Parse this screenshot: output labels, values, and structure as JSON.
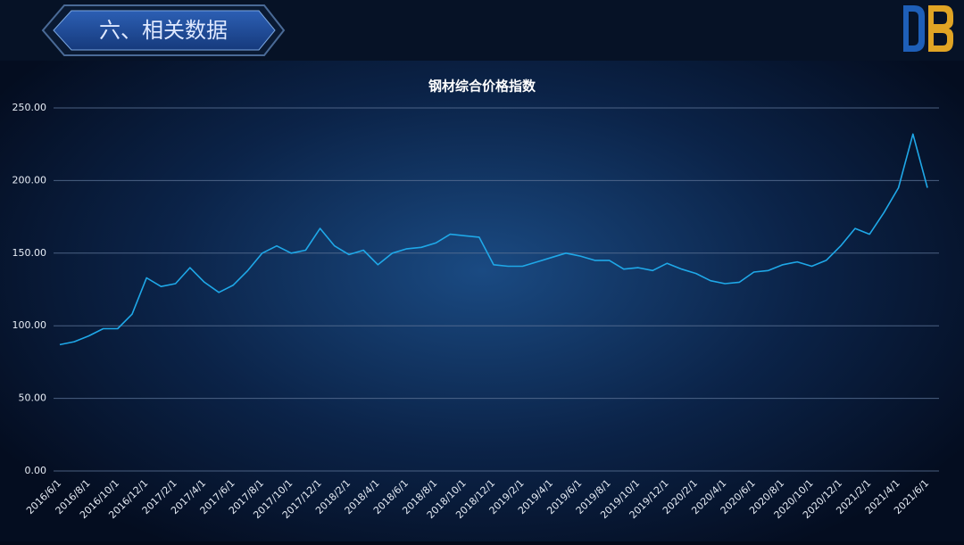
{
  "header": {
    "title": "六、相关数据"
  },
  "chart_data": {
    "type": "line",
    "title": "钢材综合价格指数",
    "categories": [
      "2016/6/1",
      null,
      "2016/8/1",
      null,
      "2016/10/1",
      null,
      "2016/12/1",
      null,
      "2017/2/1",
      null,
      "2017/4/1",
      null,
      "2017/6/1",
      null,
      "2017/8/1",
      null,
      "2017/10/1",
      null,
      "2017/12/1",
      null,
      "2018/2/1",
      null,
      "2018/4/1",
      null,
      "2018/6/1",
      null,
      "2018/8/1",
      null,
      "2018/10/1",
      null,
      "2018/12/1",
      null,
      "2019/2/1",
      null,
      "2019/4/1",
      null,
      "2019/6/1",
      null,
      "2019/8/1",
      null,
      "2019/10/1",
      null,
      "2019/12/1",
      null,
      "2020/2/1",
      null,
      "2020/4/1",
      null,
      "2020/6/1",
      null,
      "2020/8/1",
      null,
      "2020/10/1",
      null,
      "2020/12/1",
      null,
      "2021/2/1",
      null,
      "2021/4/1",
      null,
      "2021/6/1"
    ],
    "values": [
      87,
      89,
      93,
      98,
      98,
      108,
      133,
      127,
      129,
      140,
      130,
      123,
      128,
      138,
      150,
      155,
      150,
      152,
      167,
      155,
      149,
      152,
      142,
      150,
      153,
      154,
      157,
      163,
      162,
      161,
      142,
      141,
      141,
      144,
      147,
      150,
      148,
      145,
      145,
      139,
      140,
      138,
      143,
      139,
      136,
      131,
      129,
      130,
      137,
      138,
      142,
      144,
      141,
      145,
      155,
      167,
      163,
      178,
      195,
      232,
      195
    ],
    "color": "#1fa8e8",
    "ylim": [
      0,
      250
    ],
    "yticks": [
      {
        "value": 0,
        "label": "0.00"
      },
      {
        "value": 50,
        "label": "50.00"
      },
      {
        "value": 100,
        "label": "100.00"
      },
      {
        "value": 150,
        "label": "150.00"
      },
      {
        "value": 200,
        "label": "200.00"
      },
      {
        "value": 250,
        "label": "250.00"
      }
    ],
    "grid": true
  }
}
